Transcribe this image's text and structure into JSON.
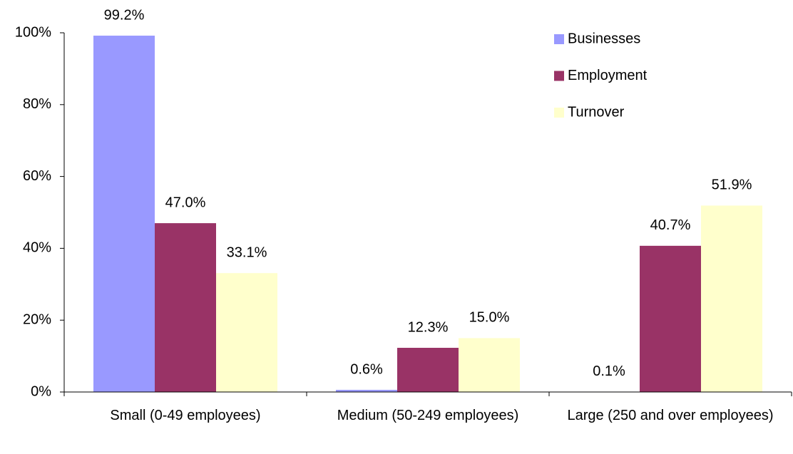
{
  "chart_data": {
    "type": "bar",
    "categories": [
      "Small (0-49 employees)",
      "Medium (50-249 employees)",
      "Large (250 and over employees)"
    ],
    "series": [
      {
        "name": "Businesses",
        "color": "#9999ff",
        "values": [
          99.2,
          0.6,
          0.1
        ],
        "value_labels": [
          "99.2%",
          "0.6%",
          "0.1%"
        ]
      },
      {
        "name": "Employment",
        "color": "#993366",
        "values": [
          47.0,
          12.3,
          40.7
        ],
        "value_labels": [
          "47.0%",
          "12.3%",
          "40.7%"
        ]
      },
      {
        "name": "Turnover",
        "color": "#ffffcc",
        "values": [
          33.1,
          15.0,
          51.9
        ],
        "value_labels": [
          "33.1%",
          "15.0%",
          "51.9%"
        ]
      }
    ],
    "ylim": [
      0,
      100
    ],
    "yticks": [
      {
        "value": 0,
        "label": "0%"
      },
      {
        "value": 20,
        "label": "20%"
      },
      {
        "value": 40,
        "label": "40%"
      },
      {
        "value": 60,
        "label": "60%"
      },
      {
        "value": 80,
        "label": "80%"
      },
      {
        "value": 100,
        "label": "100%"
      }
    ],
    "legend": "upper right"
  }
}
